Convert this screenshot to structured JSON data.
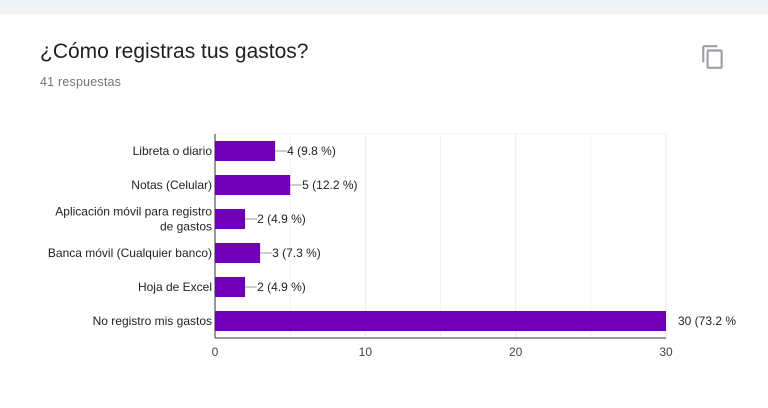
{
  "question": {
    "title": "¿Cómo registras tus gastos?",
    "response_count": "41 respuestas"
  },
  "icons": {
    "copy": "copy-icon"
  },
  "colors": {
    "bar": "#7000b8",
    "grid": "#ebebeb",
    "axis": "#333333"
  },
  "chart_data": {
    "type": "bar",
    "orientation": "horizontal",
    "categories": [
      "Libreta o diario",
      "Notas (Celular)",
      "Aplicación móvil para registro de gastos",
      "Banca móvil (Cualquier banco)",
      "Hoja de Excel",
      "No registro mis gastos"
    ],
    "category_lines": [
      [
        "Libreta o diario"
      ],
      [
        "Notas (Celular)"
      ],
      [
        "Aplicación móvil para registro",
        "de gastos"
      ],
      [
        "Banca móvil (Cualquier banco)"
      ],
      [
        "Hoja de Excel"
      ],
      [
        "No registro mis gastos"
      ]
    ],
    "values": [
      4,
      5,
      2,
      3,
      2,
      30
    ],
    "labels": [
      "4 (9.8 %)",
      "5 (12.2 %)",
      "2 (4.9 %)",
      "3 (7.3 %)",
      "2 (4.9 %)",
      "30 (73.2 %"
    ],
    "xlim": [
      0,
      30
    ],
    "xticks": [
      0,
      10,
      20,
      30
    ],
    "grid": true
  }
}
